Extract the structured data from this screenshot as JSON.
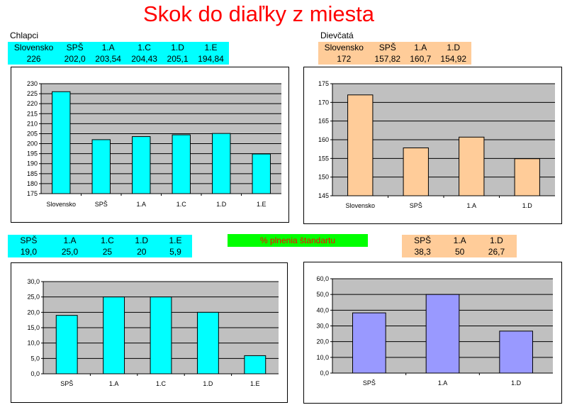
{
  "title": "Skok do diaľky z miesta",
  "boys_label": "Chlapci",
  "girls_label": "Dievčatá",
  "standard_label": "% plnenia štandartu",
  "tables": {
    "boys_results": {
      "headers": [
        "Slovensko",
        "SPŠ",
        "1.A",
        "1.C",
        "1.D",
        "1.E"
      ],
      "values": [
        "226",
        "202,0",
        "203,54",
        "204,43",
        "205,1",
        "194,84"
      ]
    },
    "girls_results": {
      "headers": [
        "Slovensko",
        "SPŠ",
        "1.A",
        "1.D"
      ],
      "values": [
        "172",
        "157,82",
        "160,7",
        "154,92"
      ]
    },
    "boys_standard": {
      "headers": [
        "SPŠ",
        "1.A",
        "1.C",
        "1.D",
        "1.E"
      ],
      "values": [
        "19,0",
        "25,0",
        "25",
        "20",
        "5,9"
      ]
    },
    "girls_standard": {
      "headers": [
        "SPŠ",
        "1.A",
        "1.D"
      ],
      "values": [
        "38,3",
        "50",
        "26,7"
      ]
    }
  },
  "colors": {
    "cyan": "#00ffff",
    "peach": "#ffcc99",
    "violet": "#9999ff",
    "plot_bg": "#c0c0c0",
    "title": "#ff0000",
    "banner": "#00ff00"
  },
  "chart_data": [
    {
      "type": "bar",
      "categories": [
        "Slovensko",
        "SPŠ",
        "1.A",
        "1.C",
        "1.D",
        "1.E"
      ],
      "values": [
        226,
        202.0,
        203.54,
        204.43,
        205.1,
        194.84
      ],
      "ylim": [
        175,
        230
      ],
      "yticks": [
        175,
        180,
        185,
        190,
        195,
        200,
        205,
        210,
        215,
        220,
        225,
        230
      ],
      "ytick_labels": [
        "175",
        "180",
        "185",
        "190",
        "195",
        "200",
        "205",
        "210",
        "215",
        "220",
        "225",
        "230"
      ],
      "color": "#00ffff",
      "grid": true
    },
    {
      "type": "bar",
      "categories": [
        "Slovensko",
        "SPŠ",
        "1.A",
        "1.D"
      ],
      "values": [
        172,
        157.82,
        160.7,
        154.92
      ],
      "ylim": [
        145,
        175
      ],
      "yticks": [
        145,
        150,
        155,
        160,
        165,
        170,
        175
      ],
      "ytick_labels": [
        "145",
        "150",
        "155",
        "160",
        "165",
        "170",
        "175"
      ],
      "color": "#ffcc99",
      "grid": true
    },
    {
      "type": "bar",
      "categories": [
        "SPŠ",
        "1.A",
        "1.C",
        "1.D",
        "1.E"
      ],
      "values": [
        19.0,
        25.0,
        25,
        20,
        5.9
      ],
      "ylim": [
        0,
        30
      ],
      "yticks": [
        0,
        5,
        10,
        15,
        20,
        25,
        30
      ],
      "ytick_labels": [
        "0,0",
        "5,0",
        "10,0",
        "15,0",
        "20,0",
        "25,0",
        "30,0"
      ],
      "color": "#00ffff",
      "grid": true
    },
    {
      "type": "bar",
      "categories": [
        "SPŠ",
        "1.A",
        "1.D"
      ],
      "values": [
        38.3,
        50,
        26.7
      ],
      "ylim": [
        0,
        60
      ],
      "yticks": [
        0,
        10,
        20,
        30,
        40,
        50,
        60
      ],
      "ytick_labels": [
        "0,0",
        "10,0",
        "20,0",
        "30,0",
        "40,0",
        "50,0",
        "60,0"
      ],
      "color": "#9999ff",
      "grid": true
    }
  ]
}
